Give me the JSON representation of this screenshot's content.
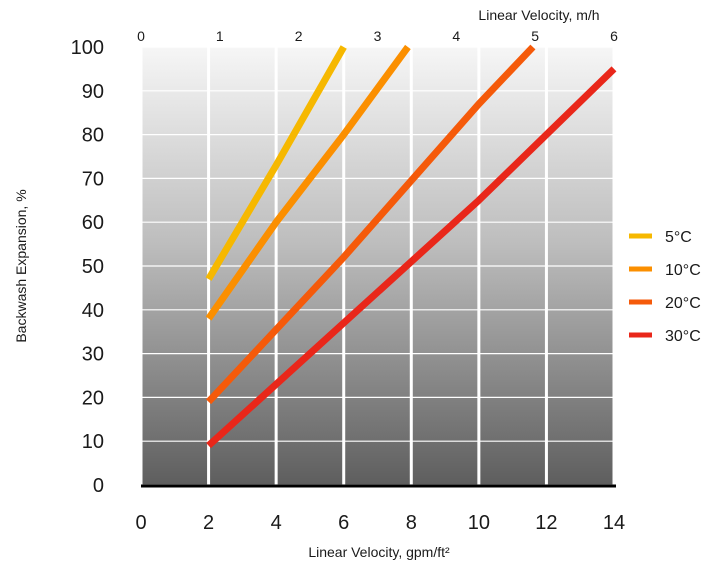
{
  "chart_data": {
    "type": "line",
    "xlabel": "Linear Velocity, gpm/ft²",
    "x2label": "Linear Velocity, m/h",
    "ylabel": "Backwash Expansion, %",
    "xlim": [
      0,
      14
    ],
    "x2lim": [
      0,
      6
    ],
    "ylim": [
      0,
      100
    ],
    "xticks": [
      "0",
      "2",
      "4",
      "6",
      "8",
      "10",
      "12",
      "14"
    ],
    "x2ticks": [
      "0",
      "1",
      "2",
      "3",
      "4",
      "5",
      "6"
    ],
    "yticks": [
      "0",
      "10",
      "20",
      "30",
      "40",
      "50",
      "60",
      "70",
      "80",
      "90",
      "100"
    ],
    "grid": true,
    "legend_position": "right",
    "series": [
      {
        "name": "5°C",
        "color": "#f6b800",
        "x": [
          2,
          4,
          6
        ],
        "y": [
          47,
          73,
          100
        ]
      },
      {
        "name": "10°C",
        "color": "#fb8f00",
        "x": [
          2,
          4,
          6,
          7.9
        ],
        "y": [
          38,
          60,
          80,
          100
        ]
      },
      {
        "name": "20°C",
        "color": "#f55a0a",
        "x": [
          2,
          6,
          10,
          11.6
        ],
        "y": [
          19,
          52,
          87,
          100
        ]
      },
      {
        "name": "30°C",
        "color": "#e9271a",
        "x": [
          2,
          4,
          6,
          10,
          14
        ],
        "y": [
          9,
          23,
          37,
          65,
          95
        ]
      }
    ]
  }
}
